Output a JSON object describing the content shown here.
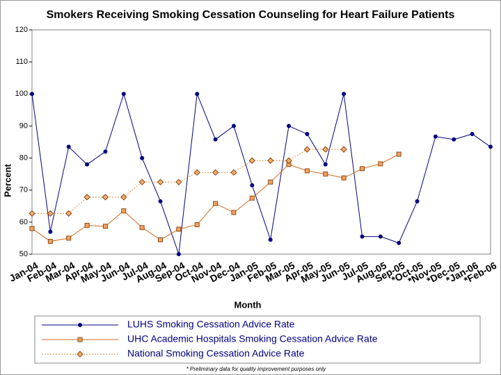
{
  "chart_data": {
    "type": "line",
    "title": "Smokers Receiving Smoking Cessation Counseling for Heart Failure Patients",
    "y_label": "Percent",
    "x_label": "Month",
    "footnote": "* Preliminary data for quality improvement purposes only",
    "categories": [
      "Jan-04",
      "Feb-04",
      "Mar-04",
      "Apr-04",
      "May-04",
      "Jun-04",
      "Jul-04",
      "Aug-04",
      "Sep-04",
      "Oct-04",
      "Nov-04",
      "Dec-04",
      "Jan-05",
      "Feb-05",
      "Mar-05",
      "Apr-05",
      "May-05",
      "Jun-05",
      "Jul-05",
      "Aug-05",
      "Sep-05",
      "*Oct-05",
      "*Nov-05",
      "*Dec-05",
      "*Jan-06",
      "*Feb-06"
    ],
    "ylim": [
      50,
      120
    ],
    "yticks": [
      50,
      60,
      70,
      80,
      90,
      100,
      110,
      120
    ],
    "series": [
      {
        "name": "LUHS Smoking Cessation Advice Rate",
        "color": "#000080",
        "marker": "circle",
        "dash": "solid",
        "values": [
          100,
          57,
          83.5,
          78,
          82,
          100,
          80,
          66.5,
          50,
          100,
          85.8,
          90,
          71.5,
          54.5,
          90,
          87.5,
          78,
          100,
          55.5,
          55.5,
          53.5,
          66.5,
          86.7,
          85.8,
          87.5,
          83.5
        ]
      },
      {
        "name": "UHC Academic Hospitals Smoking Cessation Advice Rate",
        "color": "#d2691e",
        "marker": "square",
        "dash": "solid",
        "values": [
          58,
          54,
          55,
          59,
          58.7,
          63.5,
          58.3,
          54.5,
          57.8,
          59.2,
          65.8,
          63,
          67.5,
          72.5,
          78,
          76,
          75,
          73.8,
          76.7,
          78.2,
          81.2,
          null,
          null,
          null,
          null,
          null
        ]
      },
      {
        "name": "National Smoking Cessation Advice Rate",
        "color": "#e08a3c",
        "marker": "diamond",
        "dash": "dotted",
        "values": [
          62.7,
          62.7,
          62.7,
          67.8,
          67.8,
          67.8,
          72.5,
          72.5,
          72.5,
          75.5,
          75.5,
          75.5,
          79.2,
          79.2,
          79.2,
          82.7,
          82.7,
          82.7,
          null,
          null,
          null,
          null,
          null,
          null,
          null,
          null
        ]
      }
    ]
  }
}
